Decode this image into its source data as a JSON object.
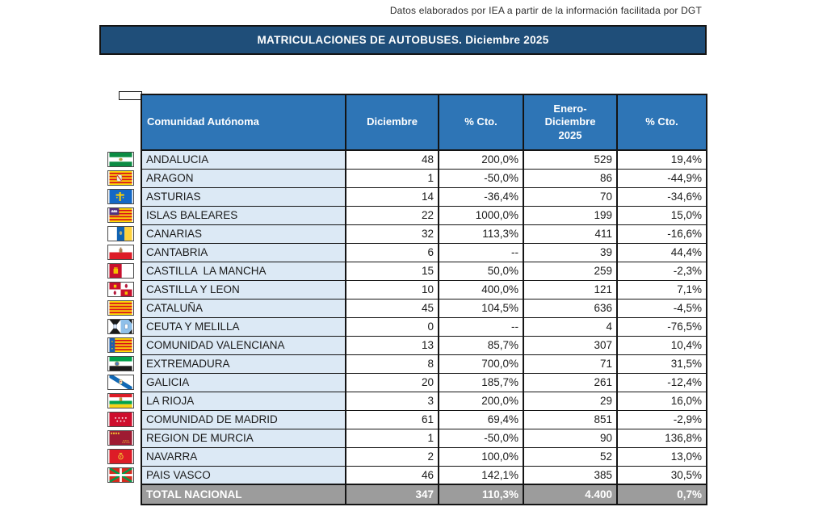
{
  "note": "Datos elaborados por IEA a partir de la información facilitada por DGT",
  "banner": {
    "title": "MATRICULACIONES DE AUTOBUSES. Diciembre 2025"
  },
  "colors": {
    "banner_bg": "#1F4E79",
    "header_bg": "#2E75B6",
    "region_cell_bg": "#DCE9F5",
    "total_row_bg": "#9C9C9C",
    "grid_border": "#141414"
  },
  "table": {
    "columns": [
      "Comunidad Autónoma",
      "Diciembre",
      "% Cto.",
      "Enero-\nDiciembre\n2025",
      "% Cto."
    ],
    "rows": [
      {
        "flag": "flag-andalucia",
        "region": "ANDALUCIA",
        "dec": "48",
        "pct_month": "200,0%",
        "ytd": "529",
        "pct_ytd": "19,4%"
      },
      {
        "flag": "flag-aragon",
        "region": "ARAGON",
        "dec": "1",
        "pct_month": "-50,0%",
        "ytd": "86",
        "pct_ytd": "-44,9%"
      },
      {
        "flag": "flag-asturias",
        "region": "ASTURIAS",
        "dec": "14",
        "pct_month": "-36,4%",
        "ytd": "70",
        "pct_ytd": "-34,6%"
      },
      {
        "flag": "flag-baleares",
        "region": "ISLAS BALEARES",
        "dec": "22",
        "pct_month": "1000,0%",
        "ytd": "199",
        "pct_ytd": "15,0%"
      },
      {
        "flag": "flag-canarias",
        "region": "CANARIAS",
        "dec": "32",
        "pct_month": "113,3%",
        "ytd": "411",
        "pct_ytd": "-16,6%"
      },
      {
        "flag": "flag-cantabria",
        "region": "CANTABRIA",
        "dec": "6",
        "pct_month": "--",
        "ytd": "39",
        "pct_ytd": "44,4%"
      },
      {
        "flag": "flag-castilla-la-mancha",
        "region": "CASTILLA  LA MANCHA",
        "dec": "15",
        "pct_month": "50,0%",
        "ytd": "259",
        "pct_ytd": "-2,3%"
      },
      {
        "flag": "flag-castilla-y-leon",
        "region": "CASTILLA Y LEON",
        "dec": "10",
        "pct_month": "400,0%",
        "ytd": "121",
        "pct_ytd": "7,1%"
      },
      {
        "flag": "flag-cataluna",
        "region": "CATALUÑA",
        "dec": "45",
        "pct_month": "104,5%",
        "ytd": "636",
        "pct_ytd": "-4,5%"
      },
      {
        "flag": "flag-ceuta-melilla",
        "region": "CEUTA Y MELILLA",
        "dec": "0",
        "pct_month": "--",
        "ytd": "4",
        "pct_ytd": "-76,5%"
      },
      {
        "flag": "flag-valenciana",
        "region": "COMUNIDAD VALENCIANA",
        "dec": "13",
        "pct_month": "85,7%",
        "ytd": "307",
        "pct_ytd": "10,4%"
      },
      {
        "flag": "flag-extremadura",
        "region": "EXTREMADURA",
        "dec": "8",
        "pct_month": "700,0%",
        "ytd": "71",
        "pct_ytd": "31,5%"
      },
      {
        "flag": "flag-galicia",
        "region": "GALICIA",
        "dec": "20",
        "pct_month": "185,7%",
        "ytd": "261",
        "pct_ytd": "-12,4%"
      },
      {
        "flag": "flag-la-rioja",
        "region": "LA RIOJA",
        "dec": "3",
        "pct_month": "200,0%",
        "ytd": "29",
        "pct_ytd": "16,0%"
      },
      {
        "flag": "flag-madrid",
        "region": "COMUNIDAD DE MADRID",
        "dec": "61",
        "pct_month": "69,4%",
        "ytd": "851",
        "pct_ytd": "-2,9%"
      },
      {
        "flag": "flag-murcia",
        "region": "REGION DE MURCIA",
        "dec": "1",
        "pct_month": "-50,0%",
        "ytd": "90",
        "pct_ytd": "136,8%"
      },
      {
        "flag": "flag-navarra",
        "region": "NAVARRA",
        "dec": "2",
        "pct_month": "100,0%",
        "ytd": "52",
        "pct_ytd": "13,0%"
      },
      {
        "flag": "flag-pais-vasco",
        "region": "PAIS VASCO",
        "dec": "46",
        "pct_month": "142,1%",
        "ytd": "385",
        "pct_ytd": "30,5%"
      }
    ],
    "total": {
      "label": "TOTAL NACIONAL",
      "dec": "347",
      "pct_month": "110,3%",
      "ytd": "4.400",
      "pct_ytd": "0,7%"
    }
  }
}
